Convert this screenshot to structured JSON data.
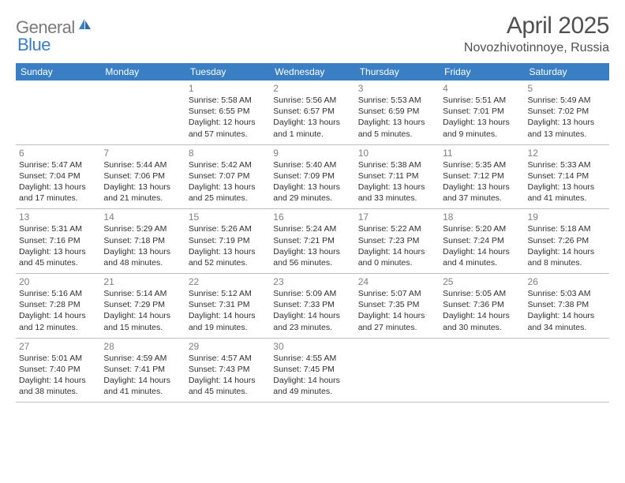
{
  "logo": {
    "text1": "General",
    "text2": "Blue"
  },
  "title": "April 2025",
  "location": "Novozhivotinnoye, Russia",
  "colors": {
    "header_bg": "#3a7fc4",
    "header_text": "#ffffff",
    "day_number": "#808080",
    "body_text": "#303030",
    "divider": "#bfbfbf",
    "logo_gray": "#7a7a7a",
    "logo_blue": "#3a7fc4",
    "title_color": "#505050"
  },
  "days_of_week": [
    "Sunday",
    "Monday",
    "Tuesday",
    "Wednesday",
    "Thursday",
    "Friday",
    "Saturday"
  ],
  "weeks": [
    [
      null,
      null,
      {
        "n": "1",
        "sunrise": "Sunrise: 5:58 AM",
        "sunset": "Sunset: 6:55 PM",
        "dl1": "Daylight: 12 hours",
        "dl2": "and 57 minutes."
      },
      {
        "n": "2",
        "sunrise": "Sunrise: 5:56 AM",
        "sunset": "Sunset: 6:57 PM",
        "dl1": "Daylight: 13 hours",
        "dl2": "and 1 minute."
      },
      {
        "n": "3",
        "sunrise": "Sunrise: 5:53 AM",
        "sunset": "Sunset: 6:59 PM",
        "dl1": "Daylight: 13 hours",
        "dl2": "and 5 minutes."
      },
      {
        "n": "4",
        "sunrise": "Sunrise: 5:51 AM",
        "sunset": "Sunset: 7:01 PM",
        "dl1": "Daylight: 13 hours",
        "dl2": "and 9 minutes."
      },
      {
        "n": "5",
        "sunrise": "Sunrise: 5:49 AM",
        "sunset": "Sunset: 7:02 PM",
        "dl1": "Daylight: 13 hours",
        "dl2": "and 13 minutes."
      }
    ],
    [
      {
        "n": "6",
        "sunrise": "Sunrise: 5:47 AM",
        "sunset": "Sunset: 7:04 PM",
        "dl1": "Daylight: 13 hours",
        "dl2": "and 17 minutes."
      },
      {
        "n": "7",
        "sunrise": "Sunrise: 5:44 AM",
        "sunset": "Sunset: 7:06 PM",
        "dl1": "Daylight: 13 hours",
        "dl2": "and 21 minutes."
      },
      {
        "n": "8",
        "sunrise": "Sunrise: 5:42 AM",
        "sunset": "Sunset: 7:07 PM",
        "dl1": "Daylight: 13 hours",
        "dl2": "and 25 minutes."
      },
      {
        "n": "9",
        "sunrise": "Sunrise: 5:40 AM",
        "sunset": "Sunset: 7:09 PM",
        "dl1": "Daylight: 13 hours",
        "dl2": "and 29 minutes."
      },
      {
        "n": "10",
        "sunrise": "Sunrise: 5:38 AM",
        "sunset": "Sunset: 7:11 PM",
        "dl1": "Daylight: 13 hours",
        "dl2": "and 33 minutes."
      },
      {
        "n": "11",
        "sunrise": "Sunrise: 5:35 AM",
        "sunset": "Sunset: 7:12 PM",
        "dl1": "Daylight: 13 hours",
        "dl2": "and 37 minutes."
      },
      {
        "n": "12",
        "sunrise": "Sunrise: 5:33 AM",
        "sunset": "Sunset: 7:14 PM",
        "dl1": "Daylight: 13 hours",
        "dl2": "and 41 minutes."
      }
    ],
    [
      {
        "n": "13",
        "sunrise": "Sunrise: 5:31 AM",
        "sunset": "Sunset: 7:16 PM",
        "dl1": "Daylight: 13 hours",
        "dl2": "and 45 minutes."
      },
      {
        "n": "14",
        "sunrise": "Sunrise: 5:29 AM",
        "sunset": "Sunset: 7:18 PM",
        "dl1": "Daylight: 13 hours",
        "dl2": "and 48 minutes."
      },
      {
        "n": "15",
        "sunrise": "Sunrise: 5:26 AM",
        "sunset": "Sunset: 7:19 PM",
        "dl1": "Daylight: 13 hours",
        "dl2": "and 52 minutes."
      },
      {
        "n": "16",
        "sunrise": "Sunrise: 5:24 AM",
        "sunset": "Sunset: 7:21 PM",
        "dl1": "Daylight: 13 hours",
        "dl2": "and 56 minutes."
      },
      {
        "n": "17",
        "sunrise": "Sunrise: 5:22 AM",
        "sunset": "Sunset: 7:23 PM",
        "dl1": "Daylight: 14 hours",
        "dl2": "and 0 minutes."
      },
      {
        "n": "18",
        "sunrise": "Sunrise: 5:20 AM",
        "sunset": "Sunset: 7:24 PM",
        "dl1": "Daylight: 14 hours",
        "dl2": "and 4 minutes."
      },
      {
        "n": "19",
        "sunrise": "Sunrise: 5:18 AM",
        "sunset": "Sunset: 7:26 PM",
        "dl1": "Daylight: 14 hours",
        "dl2": "and 8 minutes."
      }
    ],
    [
      {
        "n": "20",
        "sunrise": "Sunrise: 5:16 AM",
        "sunset": "Sunset: 7:28 PM",
        "dl1": "Daylight: 14 hours",
        "dl2": "and 12 minutes."
      },
      {
        "n": "21",
        "sunrise": "Sunrise: 5:14 AM",
        "sunset": "Sunset: 7:29 PM",
        "dl1": "Daylight: 14 hours",
        "dl2": "and 15 minutes."
      },
      {
        "n": "22",
        "sunrise": "Sunrise: 5:12 AM",
        "sunset": "Sunset: 7:31 PM",
        "dl1": "Daylight: 14 hours",
        "dl2": "and 19 minutes."
      },
      {
        "n": "23",
        "sunrise": "Sunrise: 5:09 AM",
        "sunset": "Sunset: 7:33 PM",
        "dl1": "Daylight: 14 hours",
        "dl2": "and 23 minutes."
      },
      {
        "n": "24",
        "sunrise": "Sunrise: 5:07 AM",
        "sunset": "Sunset: 7:35 PM",
        "dl1": "Daylight: 14 hours",
        "dl2": "and 27 minutes."
      },
      {
        "n": "25",
        "sunrise": "Sunrise: 5:05 AM",
        "sunset": "Sunset: 7:36 PM",
        "dl1": "Daylight: 14 hours",
        "dl2": "and 30 minutes."
      },
      {
        "n": "26",
        "sunrise": "Sunrise: 5:03 AM",
        "sunset": "Sunset: 7:38 PM",
        "dl1": "Daylight: 14 hours",
        "dl2": "and 34 minutes."
      }
    ],
    [
      {
        "n": "27",
        "sunrise": "Sunrise: 5:01 AM",
        "sunset": "Sunset: 7:40 PM",
        "dl1": "Daylight: 14 hours",
        "dl2": "and 38 minutes."
      },
      {
        "n": "28",
        "sunrise": "Sunrise: 4:59 AM",
        "sunset": "Sunset: 7:41 PM",
        "dl1": "Daylight: 14 hours",
        "dl2": "and 41 minutes."
      },
      {
        "n": "29",
        "sunrise": "Sunrise: 4:57 AM",
        "sunset": "Sunset: 7:43 PM",
        "dl1": "Daylight: 14 hours",
        "dl2": "and 45 minutes."
      },
      {
        "n": "30",
        "sunrise": "Sunrise: 4:55 AM",
        "sunset": "Sunset: 7:45 PM",
        "dl1": "Daylight: 14 hours",
        "dl2": "and 49 minutes."
      },
      null,
      null,
      null
    ]
  ]
}
